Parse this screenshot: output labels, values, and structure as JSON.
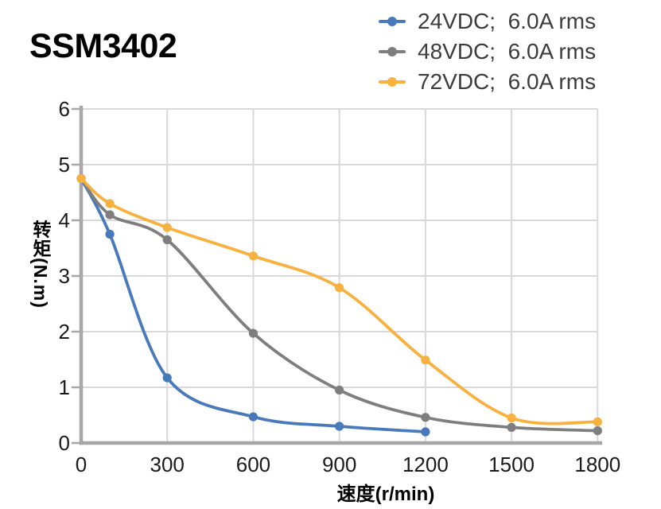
{
  "chart_data": {
    "type": "line",
    "title": "SSM3402",
    "x": [
      0,
      100,
      300,
      600,
      900,
      1200,
      1500,
      1800
    ],
    "series": [
      {
        "name": "24VDC;  6.0A rms",
        "color": "#4879BA",
        "values": [
          4.75,
          3.75,
          1.17,
          0.47,
          0.3,
          0.2,
          null,
          null
        ]
      },
      {
        "name": "48VDC;  6.0A rms",
        "color": "#7E7E7E",
        "values": [
          4.75,
          4.1,
          3.65,
          1.97,
          0.95,
          0.46,
          0.28,
          0.22
        ]
      },
      {
        "name": "72VDC;  6.0A rms",
        "color": "#F8B13E",
        "values": [
          4.75,
          4.3,
          3.87,
          3.36,
          2.79,
          1.49,
          0.45,
          0.38
        ]
      }
    ],
    "xlabel": "速度(r/min)",
    "ylabel": "转矩(N.m)",
    "xticks": [
      0,
      300,
      600,
      900,
      1200,
      1500,
      1800
    ],
    "yticks": [
      0,
      1,
      2,
      3,
      4,
      5,
      6
    ],
    "xlim": [
      0,
      1800
    ],
    "ylim": [
      0,
      6
    ],
    "grid": true,
    "marker": "circle",
    "smooth": true,
    "legend_position": "top-right"
  },
  "colors": {
    "axis": "#A7A7AA",
    "grid": "#D9D9DC",
    "tick_text": "#1A1A1A",
    "legend_text": "#3C3C3C",
    "title_text": "#000000",
    "background": "#FFFFFF"
  }
}
